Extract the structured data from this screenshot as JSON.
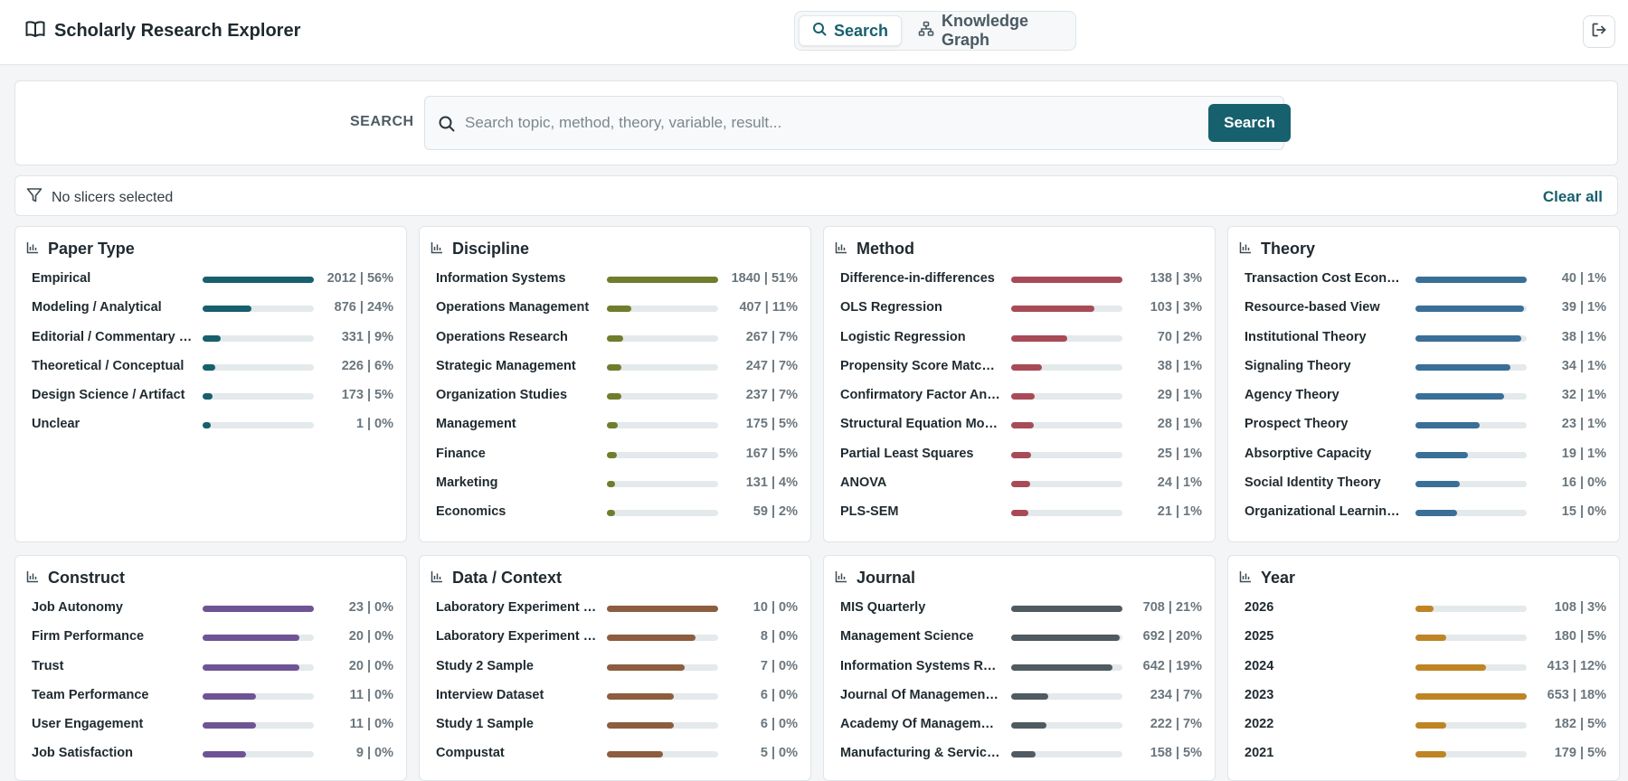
{
  "app": {
    "title": "Scholarly Research Explorer"
  },
  "nav": {
    "tabs": [
      {
        "label": "Search",
        "active": true,
        "icon": "search-icon"
      },
      {
        "label": "Knowledge Graph",
        "active": false,
        "icon": "graph-icon"
      }
    ],
    "logout_icon": "logout-icon"
  },
  "search": {
    "label": "SEARCH",
    "placeholder": "Search topic, method, theory, variable, result...",
    "value": "",
    "button_label": "Search"
  },
  "slicers": {
    "status_text": "No slicers selected",
    "clear_label": "Clear all",
    "icon": "filter-icon"
  },
  "colors": {
    "accent": "#17606e"
  },
  "facets": [
    {
      "title": "Paper Type",
      "color": "#17606e",
      "items": [
        {
          "label": "Empirical",
          "value": "2012 | 56%",
          "fill": 1.0
        },
        {
          "label": "Modeling / Analytical",
          "value": "876 | 24%",
          "fill": 0.435
        },
        {
          "label": "Editorial / Commentary / Review",
          "value": "331 | 9%",
          "fill": 0.165
        },
        {
          "label": "Theoretical / Conceptual",
          "value": "226 | 6%",
          "fill": 0.112
        },
        {
          "label": "Design Science / Artifact",
          "value": "173 | 5%",
          "fill": 0.086
        },
        {
          "label": "Unclear",
          "value": "1 | 0%",
          "fill": 0.07
        }
      ]
    },
    {
      "title": "Discipline",
      "color": "#6f7d2c",
      "items": [
        {
          "label": "Information Systems",
          "value": "1840 | 51%",
          "fill": 1.0
        },
        {
          "label": "Operations Management",
          "value": "407 | 11%",
          "fill": 0.221
        },
        {
          "label": "Operations Research",
          "value": "267 | 7%",
          "fill": 0.145
        },
        {
          "label": "Strategic Management",
          "value": "247 | 7%",
          "fill": 0.134
        },
        {
          "label": "Organization Studies",
          "value": "237 | 7%",
          "fill": 0.129
        },
        {
          "label": "Management",
          "value": "175 | 5%",
          "fill": 0.095
        },
        {
          "label": "Finance",
          "value": "167 | 5%",
          "fill": 0.091
        },
        {
          "label": "Marketing",
          "value": "131 | 4%",
          "fill": 0.071
        },
        {
          "label": "Economics",
          "value": "59 | 2%",
          "fill": 0.07
        }
      ]
    },
    {
      "title": "Method",
      "color": "#a84b57",
      "items": [
        {
          "label": "Difference-in-differences",
          "value": "138 | 3%",
          "fill": 1.0
        },
        {
          "label": "OLS Regression",
          "value": "103 | 3%",
          "fill": 0.746
        },
        {
          "label": "Logistic Regression",
          "value": "70 | 2%",
          "fill": 0.507
        },
        {
          "label": "Propensity Score Matching",
          "value": "38 | 1%",
          "fill": 0.275
        },
        {
          "label": "Confirmatory Factor Analysis",
          "value": "29 | 1%",
          "fill": 0.21
        },
        {
          "label": "Structural Equation Modeling",
          "value": "28 | 1%",
          "fill": 0.203
        },
        {
          "label": "Partial Least Squares",
          "value": "25 | 1%",
          "fill": 0.181
        },
        {
          "label": "ANOVA",
          "value": "24 | 1%",
          "fill": 0.174
        },
        {
          "label": "PLS-SEM",
          "value": "21 | 1%",
          "fill": 0.152
        }
      ]
    },
    {
      "title": "Theory",
      "color": "#3a6f98",
      "items": [
        {
          "label": "Transaction Cost Economics",
          "value": "40 | 1%",
          "fill": 1.0
        },
        {
          "label": "Resource-based View",
          "value": "39 | 1%",
          "fill": 0.975
        },
        {
          "label": "Institutional Theory",
          "value": "38 | 1%",
          "fill": 0.95
        },
        {
          "label": "Signaling Theory",
          "value": "34 | 1%",
          "fill": 0.85
        },
        {
          "label": "Agency Theory",
          "value": "32 | 1%",
          "fill": 0.8
        },
        {
          "label": "Prospect Theory",
          "value": "23 | 1%",
          "fill": 0.575
        },
        {
          "label": "Absorptive Capacity",
          "value": "19 | 1%",
          "fill": 0.475
        },
        {
          "label": "Social Identity Theory",
          "value": "16 | 0%",
          "fill": 0.4
        },
        {
          "label": "Organizational Learning Theory",
          "value": "15 | 0%",
          "fill": 0.375
        }
      ]
    },
    {
      "title": "Construct",
      "color": "#6e5494",
      "items": [
        {
          "label": "Job Autonomy",
          "value": "23 | 0%",
          "fill": 1.0
        },
        {
          "label": "Firm Performance",
          "value": "20 | 0%",
          "fill": 0.87
        },
        {
          "label": "Trust",
          "value": "20 | 0%",
          "fill": 0.87
        },
        {
          "label": "Team Performance",
          "value": "11 | 0%",
          "fill": 0.478
        },
        {
          "label": "User Engagement",
          "value": "11 | 0%",
          "fill": 0.478
        },
        {
          "label": "Job Satisfaction",
          "value": "9 | 0%",
          "fill": 0.391
        }
      ]
    },
    {
      "title": "Data / Context",
      "color": "#8c5d3f",
      "items": [
        {
          "label": "Laboratory Experiment Data",
          "value": "10 | 0%",
          "fill": 1.0
        },
        {
          "label": "Laboratory Experiment Sample",
          "value": "8 | 0%",
          "fill": 0.8
        },
        {
          "label": "Study 2 Sample",
          "value": "7 | 0%",
          "fill": 0.7
        },
        {
          "label": "Interview Dataset",
          "value": "6 | 0%",
          "fill": 0.6
        },
        {
          "label": "Study 1 Sample",
          "value": "6 | 0%",
          "fill": 0.6
        },
        {
          "label": "Compustat",
          "value": "5 | 0%",
          "fill": 0.5
        }
      ]
    },
    {
      "title": "Journal",
      "color": "#4f5b60",
      "items": [
        {
          "label": "MIS Quarterly",
          "value": "708 | 21%",
          "fill": 1.0
        },
        {
          "label": "Management Science",
          "value": "692 | 20%",
          "fill": 0.977
        },
        {
          "label": "Information Systems Research",
          "value": "642 | 19%",
          "fill": 0.907
        },
        {
          "label": "Journal Of Management Information Systems",
          "value": "234 | 7%",
          "fill": 0.331
        },
        {
          "label": "Academy Of Management Journal",
          "value": "222 | 7%",
          "fill": 0.314
        },
        {
          "label": "Manufacturing & Service Operations Management",
          "value": "158 | 5%",
          "fill": 0.223
        }
      ]
    },
    {
      "title": "Year",
      "color": "#bf8424",
      "items": [
        {
          "label": "2026",
          "value": "108 | 3%",
          "fill": 0.165
        },
        {
          "label": "2025",
          "value": "180 | 5%",
          "fill": 0.276
        },
        {
          "label": "2024",
          "value": "413 | 12%",
          "fill": 0.632
        },
        {
          "label": "2023",
          "value": "653 | 18%",
          "fill": 1.0
        },
        {
          "label": "2022",
          "value": "182 | 5%",
          "fill": 0.279
        },
        {
          "label": "2021",
          "value": "179 | 5%",
          "fill": 0.274
        }
      ]
    }
  ]
}
